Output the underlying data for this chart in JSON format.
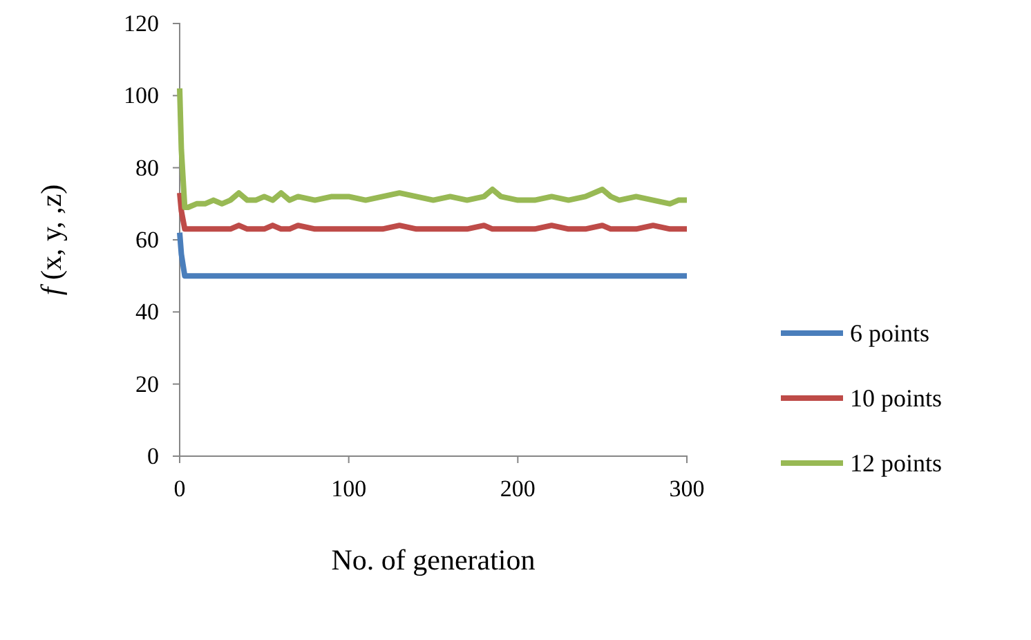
{
  "chart_data": {
    "type": "line",
    "xlabel": "No. of generation",
    "ylabel": "f (x, y, ,z)",
    "x": [
      0,
      1,
      3,
      5,
      10,
      15,
      20,
      25,
      30,
      35,
      40,
      45,
      50,
      55,
      60,
      65,
      70,
      80,
      90,
      100,
      110,
      120,
      130,
      140,
      150,
      160,
      170,
      180,
      185,
      190,
      200,
      210,
      220,
      230,
      240,
      250,
      255,
      260,
      270,
      280,
      290,
      295,
      300
    ],
    "series": [
      {
        "name": "6 points",
        "color": "#4a7ebb",
        "values": [
          62,
          56,
          50,
          50,
          50,
          50,
          50,
          50,
          50,
          50,
          50,
          50,
          50,
          50,
          50,
          50,
          50,
          50,
          50,
          50,
          50,
          50,
          50,
          50,
          50,
          50,
          50,
          50,
          50,
          50,
          50,
          50,
          50,
          50,
          50,
          50,
          50,
          50,
          50,
          50,
          50,
          50,
          50
        ]
      },
      {
        "name": "10 points",
        "color": "#be4b48",
        "values": [
          73,
          68,
          63,
          63,
          63,
          63,
          63,
          63,
          63,
          64,
          63,
          63,
          63,
          64,
          63,
          63,
          64,
          63,
          63,
          63,
          63,
          63,
          64,
          63,
          63,
          63,
          63,
          64,
          63,
          63,
          63,
          63,
          64,
          63,
          63,
          64,
          63,
          63,
          63,
          64,
          63,
          63,
          63
        ]
      },
      {
        "name": "12 points",
        "color": "#98b954",
        "values": [
          102,
          85,
          69,
          69,
          70,
          70,
          71,
          70,
          71,
          73,
          71,
          71,
          72,
          71,
          73,
          71,
          72,
          71,
          72,
          72,
          71,
          72,
          73,
          72,
          71,
          72,
          71,
          72,
          74,
          72,
          71,
          71,
          72,
          71,
          72,
          74,
          72,
          71,
          72,
          71,
          70,
          71,
          71
        ]
      }
    ],
    "xlim": [
      0,
      300
    ],
    "xticks": [
      0,
      100,
      200,
      300
    ],
    "ylim": [
      0,
      120
    ],
    "yticks": [
      0,
      20,
      40,
      60,
      80,
      100,
      120
    ],
    "grid": false,
    "legend": "right",
    "marker": "none",
    "line_style": "solid"
  }
}
